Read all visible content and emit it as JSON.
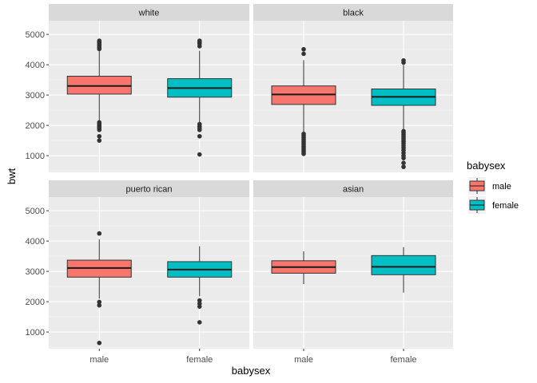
{
  "chart_data": {
    "type": "boxplot",
    "xlabel": "babysex",
    "ylabel": "bwt",
    "ylim": [
      450,
      5450
    ],
    "yticks": [
      1000,
      2000,
      3000,
      4000,
      5000
    ],
    "categories": [
      "male",
      "female"
    ],
    "legend": {
      "title": "babysex",
      "position": "right",
      "entries": [
        {
          "label": "male",
          "color": "#F8766D"
        },
        {
          "label": "female",
          "color": "#00BFC4"
        }
      ]
    },
    "panels": [
      {
        "title": "white",
        "boxes": [
          {
            "category": "male",
            "q1": 3030,
            "median": 3300,
            "q3": 3620,
            "whisker_low": 2150,
            "whisker_high": 4500,
            "outliers": [
              4520,
              4560,
              4600,
              4640,
              4680,
              4720,
              4760,
              4790,
              2100,
              2050,
              2000,
              1950,
              1900,
              1850,
              1640,
              1500
            ]
          },
          {
            "category": "female",
            "q1": 2930,
            "median": 3230,
            "q3": 3540,
            "whisker_low": 2100,
            "whisker_high": 4460,
            "outliers": [
              4610,
              4690,
              4740,
              4790,
              2040,
              1970,
              1900,
              1850,
              1640,
              1040
            ]
          }
        ]
      },
      {
        "title": "black",
        "boxes": [
          {
            "category": "male",
            "q1": 2690,
            "median": 3020,
            "q3": 3300,
            "whisker_low": 1780,
            "whisker_high": 4150,
            "outliers": [
              4360,
              4510,
              1720,
              1660,
              1600,
              1540,
              1480,
              1420,
              1360,
              1300,
              1240,
              1180,
              1120,
              1060
            ]
          },
          {
            "category": "female",
            "q1": 2660,
            "median": 2940,
            "q3": 3200,
            "whisker_low": 1860,
            "whisker_high": 3990,
            "outliers": [
              4070,
              4140,
              1810,
              1760,
              1700,
              1640,
              1580,
              1520,
              1460,
              1400,
              1330,
              1260,
              1180,
              1090,
              1000,
              920,
              760,
              630
            ]
          }
        ]
      },
      {
        "title": "puerto rican",
        "boxes": [
          {
            "category": "male",
            "q1": 2810,
            "median": 3110,
            "q3": 3370,
            "whisker_low": 2100,
            "whisker_high": 4060,
            "outliers": [
              4250,
              1990,
              1880,
              640
            ]
          },
          {
            "category": "female",
            "q1": 2810,
            "median": 3060,
            "q3": 3320,
            "whisker_low": 2180,
            "whisker_high": 3830,
            "outliers": [
              2040,
              1940,
              1840,
              1320
            ]
          }
        ]
      },
      {
        "title": "asian",
        "boxes": [
          {
            "category": "male",
            "q1": 2940,
            "median": 3140,
            "q3": 3350,
            "whisker_low": 2580,
            "whisker_high": 3660,
            "outliers": []
          },
          {
            "category": "female",
            "q1": 2890,
            "median": 3150,
            "q3": 3520,
            "whisker_low": 2300,
            "whisker_high": 3800,
            "outliers": []
          }
        ]
      }
    ]
  }
}
